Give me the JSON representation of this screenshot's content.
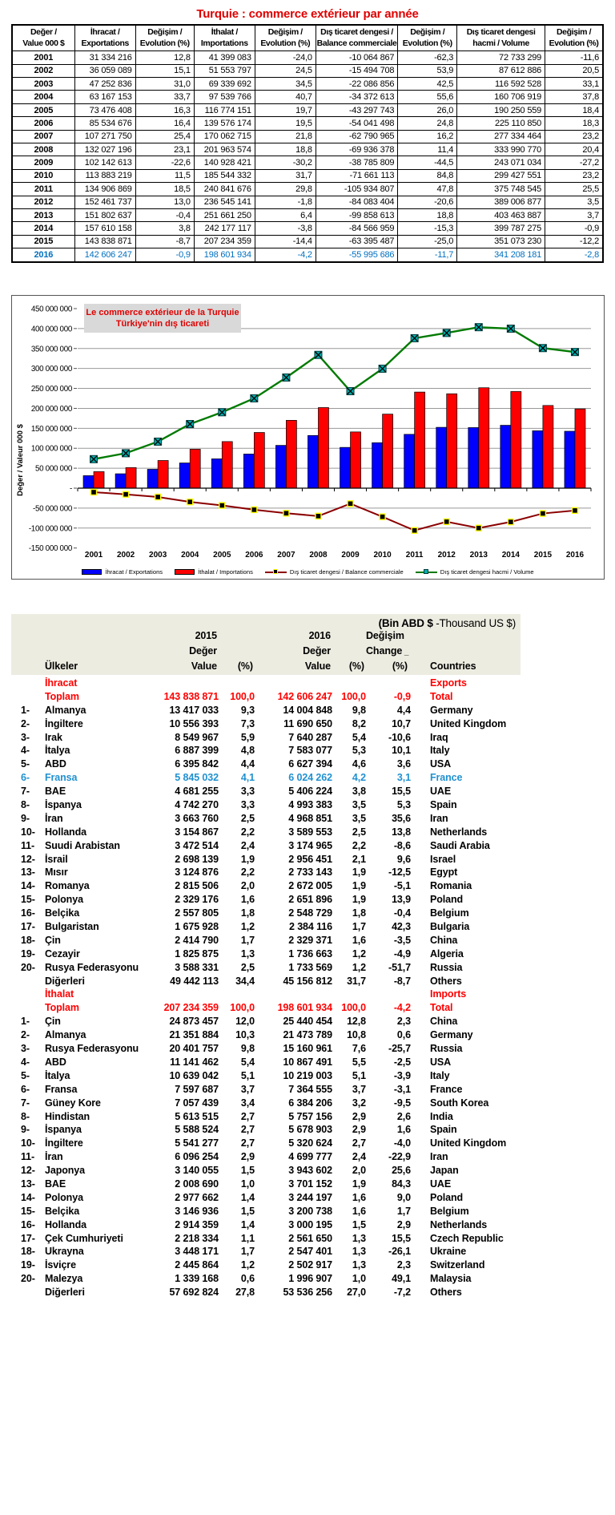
{
  "page_title": "Turquie : commerce extérieur par année",
  "yearly_table": {
    "headers": [
      {
        "l1": "Değer /",
        "l2": "Value 000 $"
      },
      {
        "l1": "İhracat /",
        "l2": "Exportations"
      },
      {
        "l1": "Değişim /",
        "l2": "Evolution (%)"
      },
      {
        "l1": "İthalat /",
        "l2": "Importations"
      },
      {
        "l1": "Değişim /",
        "l2": "Evolution (%)"
      },
      {
        "l1": "Dış ticaret dengesi /",
        "l2": "Balance commerciale"
      },
      {
        "l1": "Değişim /",
        "l2": "Evolution (%)"
      },
      {
        "l1": "Dış ticaret dengesi",
        "l2": "hacmi / Volume"
      },
      {
        "l1": "Değişim /",
        "l2": "Evolution (%)"
      }
    ],
    "rows": [
      [
        "2001",
        "31 334 216",
        "12,8",
        "41 399 083",
        "-24,0",
        "-10 064 867",
        "-62,3",
        "72 733 299",
        "-11,6"
      ],
      [
        "2002",
        "36 059 089",
        "15,1",
        "51 553 797",
        "24,5",
        "-15 494 708",
        "53,9",
        "87 612 886",
        "20,5"
      ],
      [
        "2003",
        "47 252 836",
        "31,0",
        "69 339 692",
        "34,5",
        "-22 086 856",
        "42,5",
        "116 592 528",
        "33,1"
      ],
      [
        "2004",
        "63 167 153",
        "33,7",
        "97 539 766",
        "40,7",
        "-34 372 613",
        "55,6",
        "160 706 919",
        "37,8"
      ],
      [
        "2005",
        "73 476 408",
        "16,3",
        "116 774 151",
        "19,7",
        "-43 297 743",
        "26,0",
        "190 250 559",
        "18,4"
      ],
      [
        "2006",
        "85 534 676",
        "16,4",
        "139 576 174",
        "19,5",
        "-54 041 498",
        "24,8",
        "225 110 850",
        "18,3"
      ],
      [
        "2007",
        "107 271 750",
        "25,4",
        "170 062 715",
        "21,8",
        "-62 790 965",
        "16,2",
        "277 334 464",
        "23,2"
      ],
      [
        "2008",
        "132 027 196",
        "23,1",
        "201 963 574",
        "18,8",
        "-69 936 378",
        "11,4",
        "333 990 770",
        "20,4"
      ],
      [
        "2009",
        "102 142 613",
        "-22,6",
        "140 928 421",
        "-30,2",
        "-38 785 809",
        "-44,5",
        "243 071 034",
        "-27,2"
      ],
      [
        "2010",
        "113 883 219",
        "11,5",
        "185 544 332",
        "31,7",
        "-71 661 113",
        "84,8",
        "299 427 551",
        "23,2"
      ],
      [
        "2011",
        "134 906 869",
        "18,5",
        "240 841 676",
        "29,8",
        "-105 934 807",
        "47,8",
        "375 748 545",
        "25,5"
      ],
      [
        "2012",
        "152 461 737",
        "13,0",
        "236 545 141",
        "-1,8",
        "-84 083 404",
        "-20,6",
        "389 006 877",
        "3,5"
      ],
      [
        "2013",
        "151 802 637",
        "-0,4",
        "251 661 250",
        "6,4",
        "-99 858 613",
        "18,8",
        "403 463 887",
        "3,7"
      ],
      [
        "2014",
        "157 610 158",
        "3,8",
        "242 177 117",
        "-3,8",
        "-84 566 959",
        "-15,3",
        "399 787 275",
        "-0,9"
      ],
      [
        "2015",
        "143 838 871",
        "-8,7",
        "207 234 359",
        "-14,4",
        "-63 395 487",
        "-25,0",
        "351 073 230",
        "-12,2"
      ],
      [
        "2016",
        "142 606 247",
        "-0,9",
        "198 601 934",
        "-4,2",
        "-55 995 686",
        "-11,7",
        "341 208 181",
        "-2,8"
      ]
    ],
    "last_row_color": "#0070C0"
  },
  "chart_data": {
    "type": "combo-bar-line",
    "title": [
      "Le commerce extérieur de la Turquie",
      "Türkiye'nin dış ticareti"
    ],
    "ylabel": "Değer / Valeur 000 $",
    "categories": [
      2001,
      2002,
      2003,
      2004,
      2005,
      2006,
      2007,
      2008,
      2009,
      2010,
      2011,
      2012,
      2013,
      2014,
      2015,
      2016
    ],
    "series": [
      {
        "name": "İhracat / Exportations",
        "type": "bar",
        "color": "#0000ff",
        "values": [
          31334216,
          36059089,
          47252836,
          63167153,
          73476408,
          85534676,
          107271750,
          132027196,
          102142613,
          113883219,
          134906869,
          152461737,
          151802637,
          157610158,
          143838871,
          142606247
        ]
      },
      {
        "name": "İthalat / Importations",
        "type": "bar",
        "color": "#ff0000",
        "values": [
          41399083,
          51553797,
          69339692,
          97539766,
          116774151,
          139576174,
          170062715,
          201963574,
          140928421,
          185544332,
          240841676,
          236545141,
          251661250,
          242177117,
          207234359,
          198601934
        ]
      },
      {
        "name": "Dış ticaret dengesi / Balance commerciale",
        "type": "line",
        "color": "#8b0000",
        "marker": "black-square-yellow-edge",
        "values": [
          -10064867,
          -15494708,
          -22086856,
          -34372613,
          -43297743,
          -54041498,
          -62790965,
          -69936378,
          -38785809,
          -71661113,
          -105934807,
          -84083404,
          -99858613,
          -84566959,
          -63395487,
          -55995686
        ]
      },
      {
        "name": "Dış ticaret dengesi hacmi / Volume",
        "type": "line",
        "color": "#007a00",
        "marker": "teal-square-x",
        "values": [
          72733299,
          87612886,
          116592528,
          160706919,
          190250559,
          225110850,
          277334464,
          333990770,
          243071034,
          299427551,
          375748545,
          389006877,
          403463887,
          399787275,
          351073230,
          341208181
        ]
      }
    ],
    "ylim": [
      -150000000,
      465000000
    ],
    "ytick_step": 50000000,
    "ytick_labels": [
      "450 000 000",
      "400 000 000",
      "350 000 000",
      "300 000 000",
      "250 000 000",
      "200 000 000",
      "150 000 000",
      "100 000 000",
      "50 000 000",
      "-",
      "-50 000 000",
      "-100 000 000",
      "-150 000 000"
    ],
    "grid": true,
    "legend_position": "bottom"
  },
  "country_table": {
    "unit_note_bold": "(Bin ABD $",
    "unit_note_rest": " -Thousand US $)",
    "headers": {
      "ulkeler": "Ülkeler",
      "countries": "Countries",
      "y2015": "2015",
      "y2016": "2016",
      "deger": "Değer",
      "value": "Value",
      "pct": "(%)",
      "degisim": "Değişim",
      "change": "Change",
      "change_mark": "_"
    },
    "sections": [
      {
        "label_tr": "İhracat",
        "label_en": "Exports",
        "total": [
          "",
          "Toplam",
          "143 838 871",
          "100,0",
          "142 606 247",
          "100,0",
          "-0,9",
          "Total"
        ],
        "highlight_index": 5,
        "rows": [
          [
            "1-",
            "Almanya",
            "13 417 033",
            "9,3",
            "14 004 848",
            "9,8",
            "4,4",
            "Germany"
          ],
          [
            "2-",
            "İngiltere",
            "10 556 393",
            "7,3",
            "11 690 650",
            "8,2",
            "10,7",
            "United Kingdom"
          ],
          [
            "3-",
            "Irak",
            "8 549 967",
            "5,9",
            "7 640 287",
            "5,4",
            "-10,6",
            "Iraq"
          ],
          [
            "4-",
            "İtalya",
            "6 887 399",
            "4,8",
            "7 583 077",
            "5,3",
            "10,1",
            "Italy"
          ],
          [
            "5-",
            "ABD",
            "6 395 842",
            "4,4",
            "6 627 394",
            "4,6",
            "3,6",
            "USA"
          ],
          [
            "6-",
            "Fransa",
            "5 845 032",
            "4,1",
            "6 024 262",
            "4,2",
            "3,1",
            "France"
          ],
          [
            "7-",
            "BAE",
            "4 681 255",
            "3,3",
            "5 406 224",
            "3,8",
            "15,5",
            "UAE"
          ],
          [
            "8-",
            "İspanya",
            "4 742 270",
            "3,3",
            "4 993 383",
            "3,5",
            "5,3",
            "Spain"
          ],
          [
            "9-",
            "İran",
            "3 663 760",
            "2,5",
            "4 968 851",
            "3,5",
            "35,6",
            "Iran"
          ],
          [
            "10-",
            "Hollanda",
            "3 154 867",
            "2,2",
            "3 589 553",
            "2,5",
            "13,8",
            "Netherlands"
          ],
          [
            "11-",
            "Suudi Arabistan",
            "3 472 514",
            "2,4",
            "3 174 965",
            "2,2",
            "-8,6",
            "Saudi Arabia"
          ],
          [
            "12-",
            "İsrail",
            "2 698 139",
            "1,9",
            "2 956 451",
            "2,1",
            "9,6",
            "Israel"
          ],
          [
            "13-",
            "Mısır",
            "3 124 876",
            "2,2",
            "2 733 143",
            "1,9",
            "-12,5",
            "Egypt"
          ],
          [
            "14-",
            "Romanya",
            "2 815 506",
            "2,0",
            "2 672 005",
            "1,9",
            "-5,1",
            "Romania"
          ],
          [
            "15-",
            "Polonya",
            "2 329 176",
            "1,6",
            "2 651 896",
            "1,9",
            "13,9",
            "Poland"
          ],
          [
            "16-",
            "Belçika",
            "2 557 805",
            "1,8",
            "2 548 729",
            "1,8",
            "-0,4",
            "Belgium"
          ],
          [
            "17-",
            "Bulgaristan",
            "1 675 928",
            "1,2",
            "2 384 116",
            "1,7",
            "42,3",
            "Bulgaria"
          ],
          [
            "18-",
            "Çin",
            "2 414 790",
            "1,7",
            "2 329 371",
            "1,6",
            "-3,5",
            "China"
          ],
          [
            "19-",
            "Cezayir",
            "1 825 875",
            "1,3",
            "1 736 663",
            "1,2",
            "-4,9",
            "Algeria"
          ],
          [
            "20-",
            "Rusya Federasyonu",
            "3 588 331",
            "2,5",
            "1 733 569",
            "1,2",
            "-51,7",
            "Russia"
          ]
        ],
        "others": [
          "",
          "Diğerleri",
          "49 442 113",
          "34,4",
          "45 156 812",
          "31,7",
          "-8,7",
          "Others"
        ]
      },
      {
        "label_tr": "İthalat",
        "label_en": "Imports",
        "total": [
          "",
          "Toplam",
          "207 234 359",
          "100,0",
          "198 601 934",
          "100,0",
          "-4,2",
          "Total"
        ],
        "highlight_index": -1,
        "rows": [
          [
            "1-",
            "Çin",
            "24 873 457",
            "12,0",
            "25 440 454",
            "12,8",
            "2,3",
            "China"
          ],
          [
            "2-",
            "Almanya",
            "21 351 884",
            "10,3",
            "21 473 789",
            "10,8",
            "0,6",
            "Germany"
          ],
          [
            "3-",
            "Rusya Federasyonu",
            "20 401 757",
            "9,8",
            "15 160 961",
            "7,6",
            "-25,7",
            "Russia"
          ],
          [
            "4-",
            "ABD",
            "11 141 462",
            "5,4",
            "10 867 491",
            "5,5",
            "-2,5",
            "USA"
          ],
          [
            "5-",
            "İtalya",
            "10 639 042",
            "5,1",
            "10 219 003",
            "5,1",
            "-3,9",
            "Italy"
          ],
          [
            "6-",
            "Fransa",
            "7 597 687",
            "3,7",
            "7 364 555",
            "3,7",
            "-3,1",
            "France"
          ],
          [
            "7-",
            "Güney Kore",
            "7 057 439",
            "3,4",
            "6 384 206",
            "3,2",
            "-9,5",
            "South Korea"
          ],
          [
            "8-",
            "Hindistan",
            "5 613 515",
            "2,7",
            "5 757 156",
            "2,9",
            "2,6",
            "India"
          ],
          [
            "9-",
            "İspanya",
            "5 588 524",
            "2,7",
            "5 678 903",
            "2,9",
            "1,6",
            "Spain"
          ],
          [
            "10-",
            "İngiltere",
            "5 541 277",
            "2,7",
            "5 320 624",
            "2,7",
            "-4,0",
            "United Kingdom"
          ],
          [
            "11-",
            "İran",
            "6 096 254",
            "2,9",
            "4 699 777",
            "2,4",
            "-22,9",
            "Iran"
          ],
          [
            "12-",
            "Japonya",
            "3 140 055",
            "1,5",
            "3 943 602",
            "2,0",
            "25,6",
            "Japan"
          ],
          [
            "13-",
            "BAE",
            "2 008 690",
            "1,0",
            "3 701 152",
            "1,9",
            "84,3",
            "UAE"
          ],
          [
            "14-",
            "Polonya",
            "2 977 662",
            "1,4",
            "3 244 197",
            "1,6",
            "9,0",
            "Poland"
          ],
          [
            "15-",
            "Belçika",
            "3 146 936",
            "1,5",
            "3 200 738",
            "1,6",
            "1,7",
            "Belgium"
          ],
          [
            "16-",
            "Hollanda",
            "2 914 359",
            "1,4",
            "3 000 195",
            "1,5",
            "2,9",
            "Netherlands"
          ],
          [
            "17-",
            "Çek Cumhuriyeti",
            "2 218 334",
            "1,1",
            "2 561 650",
            "1,3",
            "15,5",
            "Czech Republic"
          ],
          [
            "18-",
            "Ukrayna",
            "3 448 171",
            "1,7",
            "2 547 401",
            "1,3",
            "-26,1",
            "Ukraine"
          ],
          [
            "19-",
            "İsviçre",
            "2 445 864",
            "1,2",
            "2 502 917",
            "1,3",
            "2,3",
            "Switzerland"
          ],
          [
            "20-",
            "Malezya",
            "1 339 168",
            "0,6",
            "1 996 907",
            "1,0",
            "49,1",
            "Malaysia"
          ]
        ],
        "others": [
          "",
          "Diğerleri",
          "57 692 824",
          "27,8",
          "53 536 256",
          "27,0",
          "-7,2",
          "Others"
        ]
      }
    ]
  },
  "colors": {
    "title_red": "#e00000",
    "section_red": "#ff0000",
    "row_2016_blue": "#0070c0",
    "france_blue": "#2191d0",
    "header_beige": "#edece1",
    "chart_title_bg": "#d9d9d9"
  }
}
